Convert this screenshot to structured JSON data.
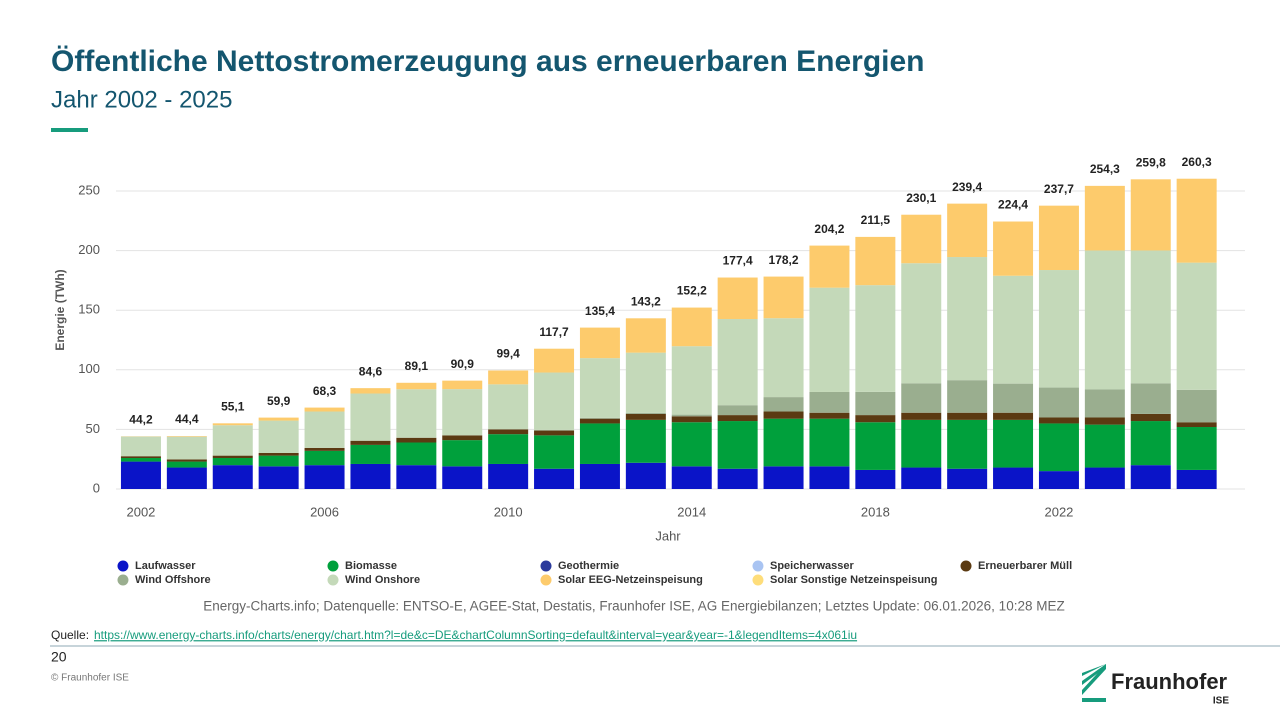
{
  "page": {
    "title": "Öffentliche Nettostromerzeugung aus erneuerbaren Energien",
    "subtitle": "Jahr 2002 - 2025",
    "source_note": "Energy-Charts.info; Datenquelle: ENTSO-E, AGEE-Stat, Destatis, Fraunhofer ISE, AG Energiebilanzen; Letztes Update: 06.01.2026, 10:28 MEZ",
    "quelle_label": "Quelle:",
    "quelle_url": "https://www.energy-charts.info/charts/energy/chart.htm?l=de&c=DE&chartColumnSorting=default&interval=year&year=-1&legendItems=4x061iu",
    "page_number": "20",
    "copyright": "© Fraunhofer ISE",
    "logo": "Fraunhofer",
    "logo_sub": "ISE"
  },
  "chart_data": {
    "type": "bar",
    "stacked": true,
    "x_label": "Jahr",
    "y_label": "Energie (TWh)",
    "categories": [
      "2002",
      null,
      null,
      null,
      "2006",
      null,
      null,
      null,
      "2010",
      null,
      null,
      null,
      "2014",
      null,
      null,
      null,
      "2018",
      null,
      null,
      null,
      "2022",
      null,
      null,
      null
    ],
    "series": [
      {
        "name": "Laufwasser",
        "color": "#0a14c8",
        "values": [
          23,
          18,
          20,
          19,
          20,
          21,
          20,
          19,
          21,
          17,
          21,
          22,
          19,
          17,
          19,
          19,
          16,
          18,
          17,
          18,
          15,
          18,
          20,
          16
        ]
      },
      {
        "name": "Biomasse",
        "color": "#00a03c",
        "values": [
          3,
          5,
          6,
          9,
          12,
          16,
          19,
          22,
          25,
          28,
          34,
          36,
          37,
          40,
          40,
          40,
          40,
          40,
          41,
          40,
          40,
          36,
          37,
          36
        ]
      },
      {
        "name": "Geothermie",
        "color": "#2b3a9c",
        "values": [
          0,
          0,
          0,
          0,
          0,
          0,
          0,
          0,
          0,
          0,
          0,
          0,
          0,
          0,
          0,
          0,
          0,
          0,
          0,
          0,
          0,
          0,
          0,
          0
        ]
      },
      {
        "name": "Speicherwasser",
        "color": "#a9c4f2",
        "values": [
          0,
          0,
          0,
          0,
          0,
          0,
          0,
          0,
          0,
          0,
          0,
          0,
          0,
          0,
          0,
          0,
          0,
          0,
          0,
          0,
          0,
          0,
          0,
          0
        ]
      },
      {
        "name": "Erneuerbarer Müll",
        "color": "#5b3a12",
        "values": [
          1.5,
          1.8,
          2,
          2.2,
          2.5,
          3.5,
          4,
          4,
          4,
          4,
          4,
          5,
          5,
          5,
          6,
          5,
          6,
          6,
          6,
          6,
          5,
          6,
          6,
          4
        ]
      },
      {
        "name": "Wind Offshore",
        "color": "#9aae8f",
        "values": [
          0,
          0,
          0,
          0,
          0,
          0,
          0,
          0,
          0.2,
          0.6,
          0.7,
          0.9,
          1.4,
          8.3,
          12.1,
          17.4,
          19.5,
          24.7,
          27.3,
          24.4,
          25.1,
          23.5,
          25.7,
          27.2
        ]
      },
      {
        "name": "Wind Onshore",
        "color": "#c4d9b9",
        "values": [
          16.5,
          19.1,
          25.5,
          27.2,
          30.5,
          39.6,
          40.7,
          38.8,
          37.6,
          48.1,
          50.1,
          50.5,
          57.4,
          72.3,
          66.2,
          87.5,
          89.5,
          100.7,
          103.3,
          90.5,
          98.6,
          116.6,
          111.4,
          106.7
        ]
      },
      {
        "name": "Solar EEG-Netzeinspeisung",
        "color": "#fdcb6c",
        "values": [
          0.2,
          0.5,
          1.6,
          2.5,
          3.3,
          4.5,
          5.4,
          7.1,
          11.6,
          20,
          25.6,
          28.8,
          32.4,
          34.8,
          34.9,
          35.3,
          40.5,
          40.7,
          44.8,
          45.5,
          54,
          54.2,
          59.7,
          70.4
        ]
      },
      {
        "name": "Solar Sonstige Netzeinspeisung",
        "color": "#fedd7a",
        "values": [
          0,
          0,
          0,
          0,
          0,
          0,
          0,
          0,
          0,
          0,
          0,
          0,
          0,
          0,
          0,
          0,
          0,
          0,
          0,
          0,
          0,
          0,
          0,
          0
        ]
      }
    ],
    "totals": [
      44.2,
      44.4,
      55.1,
      59.9,
      68.3,
      84.6,
      89.1,
      90.9,
      99.4,
      117.7,
      135.4,
      143.2,
      152.2,
      177.4,
      178.2,
      204.2,
      211.5,
      230.1,
      239.4,
      224.4,
      237.7,
      254.3,
      259.8,
      260.3
    ],
    "total_labels": [
      "44,2",
      "44,4",
      "55,1",
      "59,9",
      "68,3",
      "84,6",
      "89,1",
      "90,9",
      "99,4",
      "117,7",
      "135,4",
      "143,2",
      "152,2",
      "177,4",
      "178,2",
      "204,2",
      "211,5",
      "230,1",
      "239,4",
      "224,4",
      "237,7",
      "254,3",
      "259,8",
      "260,3"
    ],
    "ylim": [
      0,
      270
    ],
    "yticks": [
      0,
      50,
      100,
      150,
      200,
      250
    ],
    "grid": true
  }
}
